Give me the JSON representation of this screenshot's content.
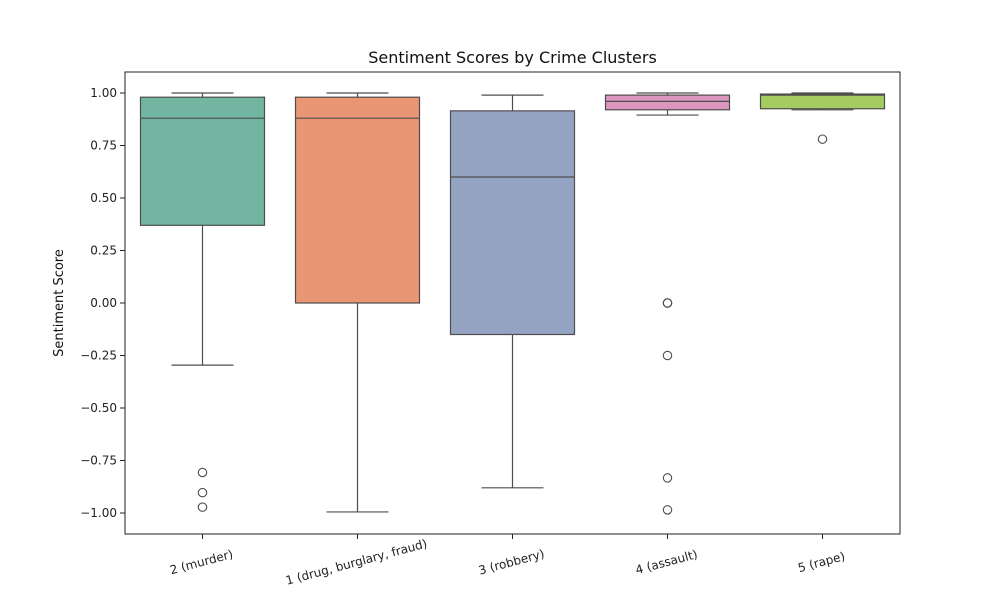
{
  "chart_data": {
    "type": "box",
    "title": "Sentiment Scores by Crime Clusters",
    "xlabel": "",
    "ylabel": "Sentiment Score",
    "ylim": [
      -1.1,
      1.1
    ],
    "yticks": [
      -1.0,
      -0.75,
      -0.5,
      -0.25,
      0.0,
      0.25,
      0.5,
      0.75,
      1.0
    ],
    "ytick_labels": [
      "−1.00",
      "−0.75",
      "−0.50",
      "−0.25",
      "0.00",
      "0.25",
      "0.50",
      "0.75",
      "1.00"
    ],
    "grid": false,
    "categories": [
      "2 (murder)",
      "1 (drug, burglary, fraud)",
      "3 (robbery)",
      "4 (assault)",
      "5 (rape)"
    ],
    "boxes": [
      {
        "category": "2 (murder)",
        "color": "#72b6a1",
        "whisker_low": -0.296,
        "q1": 0.37,
        "median": 0.88,
        "q3": 0.98,
        "whisker_high": 1.0,
        "outliers": [
          -0.807,
          -0.903,
          -0.972
        ]
      },
      {
        "category": "1 (drug, burglary, fraud)",
        "color": "#e99675",
        "whisker_low": -0.995,
        "q1": 0.0,
        "median": 0.88,
        "q3": 0.98,
        "whisker_high": 1.0,
        "outliers": []
      },
      {
        "category": "3 (robbery)",
        "color": "#95a3c3",
        "whisker_low": -0.88,
        "q1": -0.15,
        "median": 0.6,
        "q3": 0.915,
        "whisker_high": 0.99,
        "outliers": []
      },
      {
        "category": "4 (assault)",
        "color": "#db96c0",
        "whisker_low": 0.895,
        "q1": 0.92,
        "median": 0.96,
        "q3": 0.99,
        "whisker_high": 1.0,
        "outliers": [
          0.0,
          0.0,
          -0.25,
          -0.833,
          -0.985
        ]
      },
      {
        "category": "5 (rape)",
        "color": "#a4cc61",
        "whisker_low": 0.92,
        "q1": 0.925,
        "median": 0.99,
        "q3": 0.995,
        "whisker_high": 1.0,
        "outliers": [
          0.78
        ]
      }
    ]
  }
}
